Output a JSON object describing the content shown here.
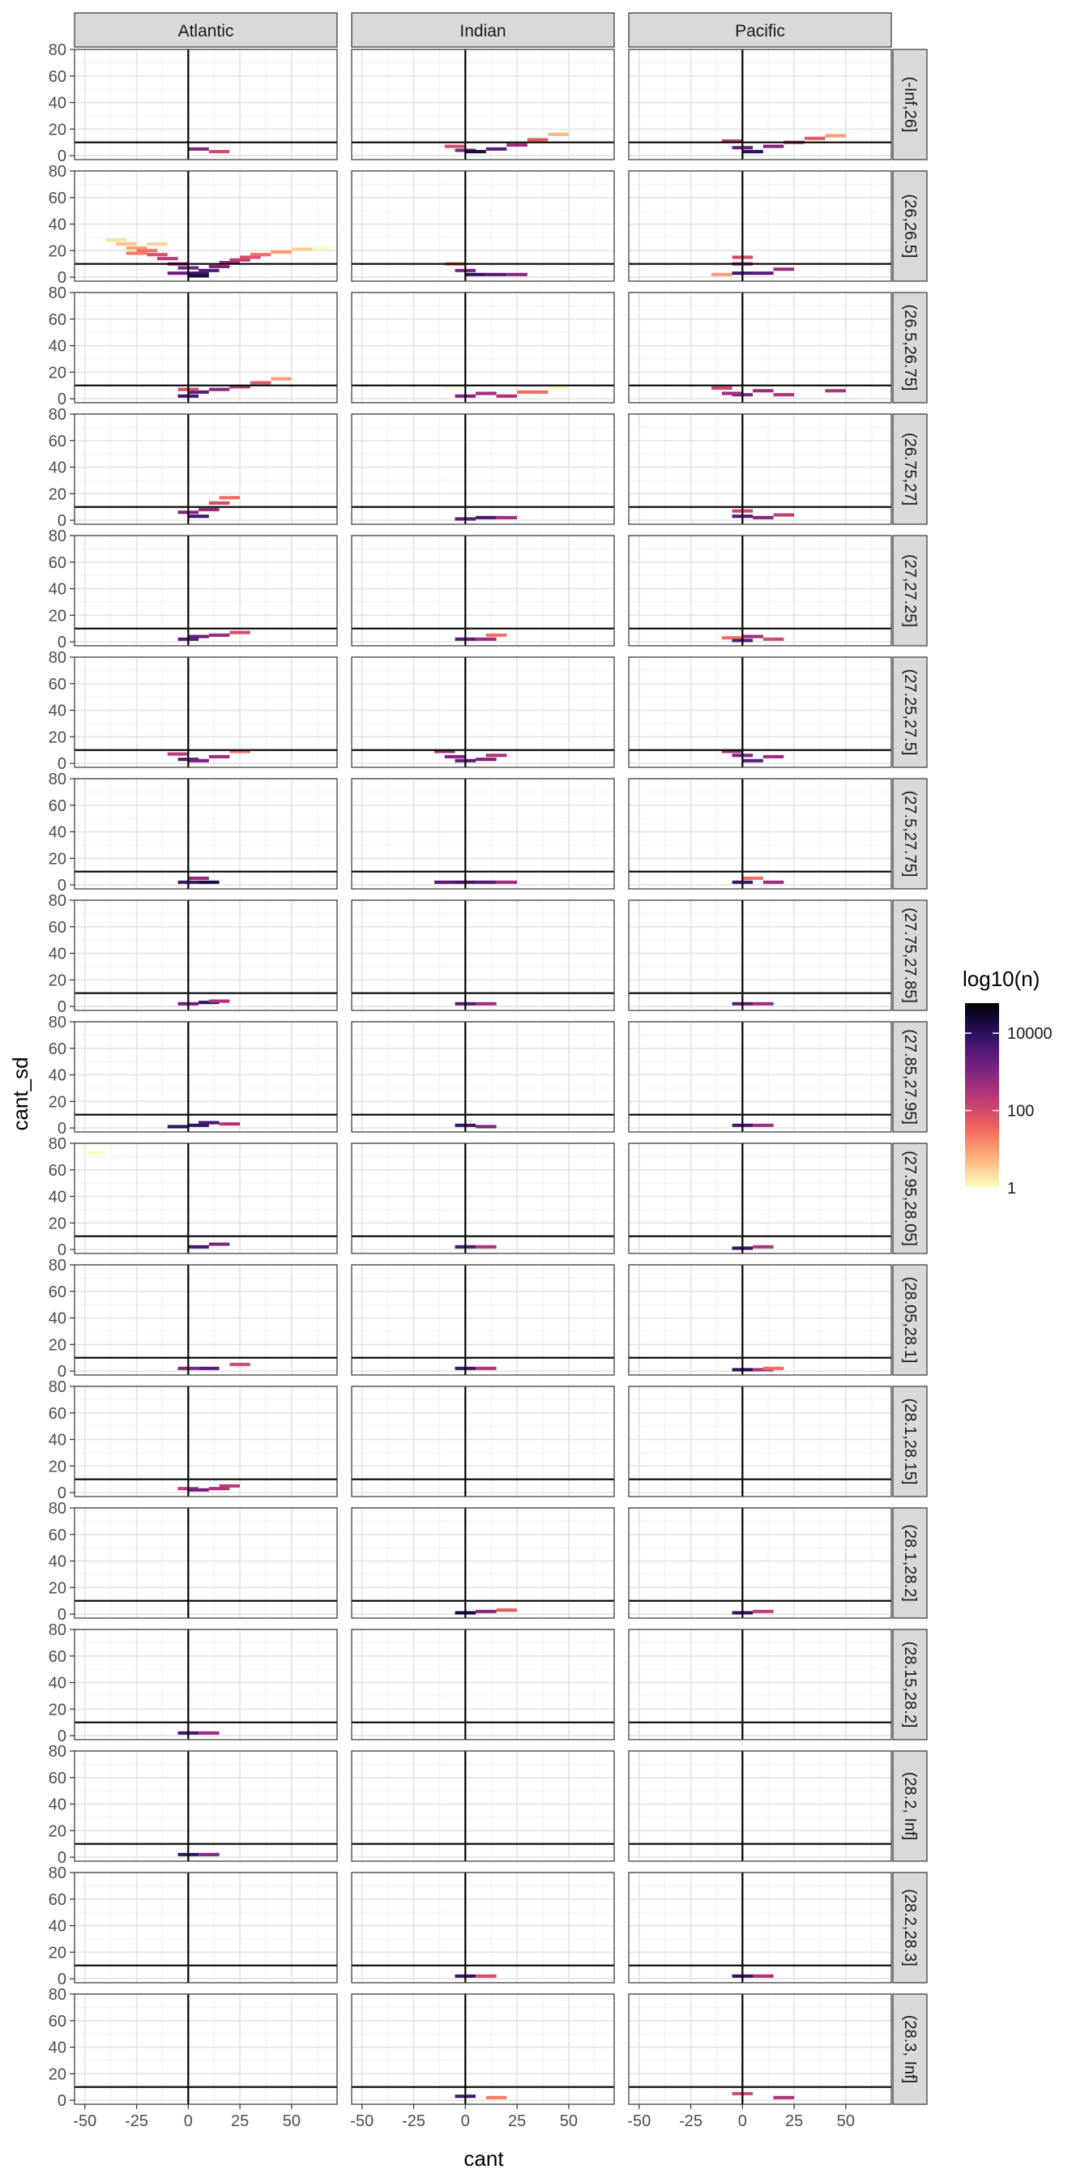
{
  "chart_data": {
    "type": "heatmap",
    "title": "",
    "xlabel": "cant",
    "ylabel": "cant_sd",
    "xlim": [
      -55,
      72
    ],
    "ylim": [
      -3,
      80
    ],
    "x_ticks": [
      -50,
      -25,
      0,
      25,
      50
    ],
    "x_tick_labels": [
      "-50",
      "-25",
      "0",
      "25",
      "50"
    ],
    "y_ticks": [
      0,
      20,
      40,
      60,
      80
    ],
    "y_tick_labels": [
      "0",
      "20",
      "40",
      "60",
      "80"
    ],
    "grid": true,
    "reference_lines": {
      "vline_x": 0,
      "hline_y": 10
    },
    "columns": [
      "Atlantic",
      "Indian",
      "Pacific"
    ],
    "rows": [
      "(-Inf,26]",
      "(26,26.5]",
      "(26.5,26.75]",
      "(26.75,27]",
      "(27,27.25]",
      "(27.25,27.5]",
      "(27.5,27.75]",
      "(27.75,27.85]",
      "(27.85,27.95]",
      "(27.95,28.05]",
      "(28.05,28.1]",
      "(28.1,28.15]",
      "(28.1,28.2]",
      "(28.15,28.2]",
      "(28.2, Inf]",
      "(28.2,28.3]",
      "(28.3, Inf]"
    ],
    "legend": {
      "title": "log10(n)",
      "position": "right",
      "scale": "log10",
      "range": [
        1,
        60000
      ],
      "breaks": [
        1,
        100,
        10000
      ],
      "break_labels": [
        "1",
        "100",
        "10000"
      ],
      "palette": [
        "#fcfdbf",
        "#feb078",
        "#f1605d",
        "#b63679",
        "#721f81",
        "#2d1160",
        "#000004"
      ]
    },
    "cells": [
      [
        [
          [
            0,
            10,
            5,
            1000
          ],
          [
            10,
            20,
            3,
            100
          ]
        ],
        [
          [
            -40,
            -30,
            28,
            2
          ],
          [
            -35,
            -25,
            25,
            4
          ],
          [
            -30,
            -20,
            22,
            8
          ],
          [
            -25,
            -15,
            20,
            30
          ],
          [
            -20,
            -10,
            17,
            80
          ],
          [
            -15,
            -5,
            14,
            200
          ],
          [
            -10,
            0,
            10,
            500
          ],
          [
            -5,
            5,
            7,
            1500
          ],
          [
            0,
            10,
            3,
            6000
          ],
          [
            5,
            15,
            5,
            3000
          ],
          [
            10,
            20,
            8,
            1000
          ],
          [
            15,
            25,
            11,
            500
          ],
          [
            20,
            30,
            13,
            200
          ],
          [
            25,
            35,
            15,
            80
          ],
          [
            30,
            40,
            17,
            30
          ],
          [
            40,
            50,
            19,
            10
          ],
          [
            50,
            60,
            21,
            3
          ],
          [
            60,
            70,
            22,
            1
          ],
          [
            -20,
            -10,
            25,
            3
          ],
          [
            -30,
            -20,
            18,
            20
          ],
          [
            0,
            10,
            1,
            20000
          ],
          [
            -10,
            0,
            3,
            2000
          ]
        ],
        [
          [
            -5,
            5,
            2,
            5000
          ],
          [
            0,
            10,
            5,
            3000
          ],
          [
            10,
            20,
            7,
            800
          ],
          [
            20,
            30,
            9,
            200
          ],
          [
            30,
            40,
            12,
            50
          ],
          [
            40,
            50,
            15,
            10
          ],
          [
            -5,
            5,
            7,
            100
          ]
        ],
        [
          [
            0,
            10,
            3,
            5000
          ],
          [
            5,
            15,
            8,
            500
          ],
          [
            10,
            20,
            13,
            100
          ],
          [
            15,
            25,
            17,
            30
          ],
          [
            -5,
            5,
            6,
            1000
          ]
        ],
        [
          [
            -5,
            5,
            2,
            3000
          ],
          [
            0,
            10,
            4,
            2000
          ],
          [
            10,
            20,
            5,
            500
          ],
          [
            20,
            30,
            7,
            100
          ]
        ],
        [
          [
            -10,
            0,
            7,
            200
          ],
          [
            -5,
            5,
            3,
            3000
          ],
          [
            0,
            10,
            2,
            1500
          ],
          [
            10,
            20,
            5,
            500
          ],
          [
            20,
            30,
            9,
            30
          ]
        ],
        [
          [
            -5,
            5,
            2,
            6000
          ],
          [
            5,
            15,
            2,
            20000
          ],
          [
            0,
            10,
            5,
            500
          ]
        ],
        [
          [
            -5,
            5,
            2,
            1500
          ],
          [
            5,
            15,
            3,
            10000
          ],
          [
            10,
            20,
            4,
            300
          ]
        ],
        [
          [
            -10,
            0,
            1,
            8000
          ],
          [
            0,
            10,
            2,
            8000
          ],
          [
            5,
            15,
            4,
            5000
          ],
          [
            15,
            25,
            3,
            300
          ]
        ],
        [
          [
            -50,
            -40,
            73,
            1
          ],
          [
            0,
            10,
            2,
            5000
          ],
          [
            10,
            20,
            4,
            1000
          ]
        ],
        [
          [
            -5,
            5,
            2,
            1000
          ],
          [
            5,
            15,
            2,
            3000
          ],
          [
            20,
            30,
            5,
            100
          ]
        ],
        [
          [
            -5,
            5,
            3,
            200
          ],
          [
            0,
            10,
            2,
            1500
          ],
          [
            10,
            20,
            3,
            300
          ],
          [
            15,
            25,
            5,
            200
          ]
        ],
        [],
        [
          [
            -5,
            5,
            2,
            5000
          ],
          [
            5,
            15,
            2,
            500
          ]
        ],
        [
          [
            -5,
            5,
            2,
            8000
          ],
          [
            5,
            15,
            2,
            1000
          ]
        ],
        [],
        []
      ],
      [
        [
          [
            -10,
            0,
            7,
            100
          ],
          [
            -5,
            5,
            4,
            1000
          ],
          [
            0,
            10,
            3,
            20000
          ],
          [
            10,
            20,
            5,
            3000
          ],
          [
            20,
            30,
            8,
            500
          ],
          [
            30,
            40,
            12,
            50
          ],
          [
            40,
            50,
            16,
            5
          ]
        ],
        [
          [
            -10,
            0,
            10,
            30
          ],
          [
            -5,
            5,
            5,
            1000
          ],
          [
            0,
            10,
            2,
            8000
          ],
          [
            10,
            20,
            2,
            3000
          ],
          [
            20,
            30,
            2,
            800
          ]
        ],
        [
          [
            -10,
            0,
            9,
            1
          ],
          [
            -5,
            5,
            2,
            1000
          ],
          [
            5,
            15,
            4,
            500
          ],
          [
            15,
            25,
            2,
            300
          ],
          [
            25,
            40,
            5,
            30
          ],
          [
            40,
            50,
            8,
            1
          ]
        ],
        [
          [
            -5,
            5,
            1,
            3000
          ],
          [
            5,
            15,
            2,
            5000
          ],
          [
            15,
            25,
            2,
            500
          ]
        ],
        [
          [
            -5,
            5,
            2,
            3000
          ],
          [
            5,
            15,
            2,
            500
          ],
          [
            10,
            20,
            5,
            30
          ]
        ],
        [
          [
            -15,
            -5,
            9,
            500
          ],
          [
            -10,
            0,
            5,
            1000
          ],
          [
            -5,
            5,
            2,
            3000
          ],
          [
            5,
            15,
            3,
            1000
          ],
          [
            10,
            20,
            6,
            300
          ]
        ],
        [
          [
            -15,
            -5,
            2,
            3000
          ],
          [
            -5,
            5,
            2,
            6000
          ],
          [
            5,
            15,
            2,
            3000
          ],
          [
            15,
            25,
            2,
            500
          ]
        ],
        [
          [
            -5,
            5,
            2,
            3000
          ],
          [
            5,
            15,
            2,
            500
          ]
        ],
        [
          [
            -5,
            5,
            2,
            6000
          ],
          [
            5,
            15,
            1,
            1000
          ]
        ],
        [
          [
            -5,
            5,
            2,
            5000
          ],
          [
            5,
            15,
            2,
            300
          ]
        ],
        [
          [
            -5,
            5,
            2,
            6000
          ],
          [
            5,
            15,
            2,
            300
          ]
        ],
        [],
        [
          [
            -5,
            5,
            1,
            20000
          ],
          [
            5,
            15,
            2,
            1000
          ],
          [
            15,
            25,
            3,
            50
          ]
        ],
        [],
        [],
        [
          [
            -5,
            5,
            2,
            8000
          ],
          [
            5,
            15,
            2,
            100
          ]
        ],
        [
          [
            -5,
            5,
            3,
            5000
          ],
          [
            10,
            20,
            2,
            20
          ]
        ]
      ],
      [
        [
          [
            -10,
            0,
            11,
            200
          ],
          [
            -5,
            5,
            6,
            2000
          ],
          [
            0,
            10,
            3,
            10000
          ],
          [
            10,
            20,
            7,
            1000
          ],
          [
            20,
            30,
            10,
            200
          ],
          [
            30,
            40,
            13,
            50
          ],
          [
            40,
            50,
            15,
            10
          ]
        ],
        [
          [
            -15,
            -5,
            2,
            10
          ],
          [
            -5,
            5,
            15,
            100
          ],
          [
            -5,
            5,
            10,
            300
          ],
          [
            -5,
            5,
            3,
            5000
          ],
          [
            5,
            15,
            3,
            3000
          ],
          [
            15,
            25,
            6,
            500
          ]
        ],
        [
          [
            -15,
            -5,
            8,
            100
          ],
          [
            -5,
            5,
            3,
            1000
          ],
          [
            5,
            15,
            6,
            500
          ],
          [
            15,
            25,
            3,
            300
          ],
          [
            40,
            50,
            6,
            300
          ],
          [
            -10,
            0,
            4,
            500
          ]
        ],
        [
          [
            -5,
            5,
            7,
            100
          ],
          [
            -5,
            5,
            3,
            3000
          ],
          [
            5,
            15,
            2,
            1000
          ],
          [
            15,
            25,
            4,
            200
          ]
        ],
        [
          [
            -10,
            0,
            3,
            30
          ],
          [
            -5,
            5,
            1,
            3000
          ],
          [
            0,
            10,
            4,
            500
          ],
          [
            10,
            20,
            2,
            100
          ]
        ],
        [
          [
            -10,
            0,
            9,
            500
          ],
          [
            -5,
            5,
            6,
            1000
          ],
          [
            0,
            10,
            2,
            3000
          ],
          [
            10,
            20,
            5,
            500
          ]
        ],
        [
          [
            -5,
            5,
            2,
            6000
          ],
          [
            0,
            10,
            5,
            30
          ],
          [
            10,
            20,
            2,
            500
          ]
        ],
        [
          [
            -5,
            5,
            2,
            3000
          ],
          [
            5,
            15,
            2,
            500
          ]
        ],
        [
          [
            -5,
            5,
            2,
            5000
          ],
          [
            5,
            15,
            2,
            500
          ]
        ],
        [
          [
            -5,
            5,
            1,
            8000
          ],
          [
            5,
            15,
            2,
            300
          ]
        ],
        [
          [
            -5,
            5,
            1,
            10000
          ],
          [
            5,
            15,
            1,
            300
          ],
          [
            10,
            20,
            2,
            30
          ]
        ],
        [],
        [
          [
            -5,
            5,
            1,
            8000
          ],
          [
            5,
            15,
            2,
            200
          ]
        ],
        [],
        [],
        [
          [
            -5,
            5,
            2,
            8000
          ],
          [
            5,
            15,
            2,
            300
          ]
        ],
        [
          [
            -5,
            5,
            5,
            100
          ],
          [
            15,
            25,
            2,
            300
          ]
        ]
      ]
    ]
  }
}
